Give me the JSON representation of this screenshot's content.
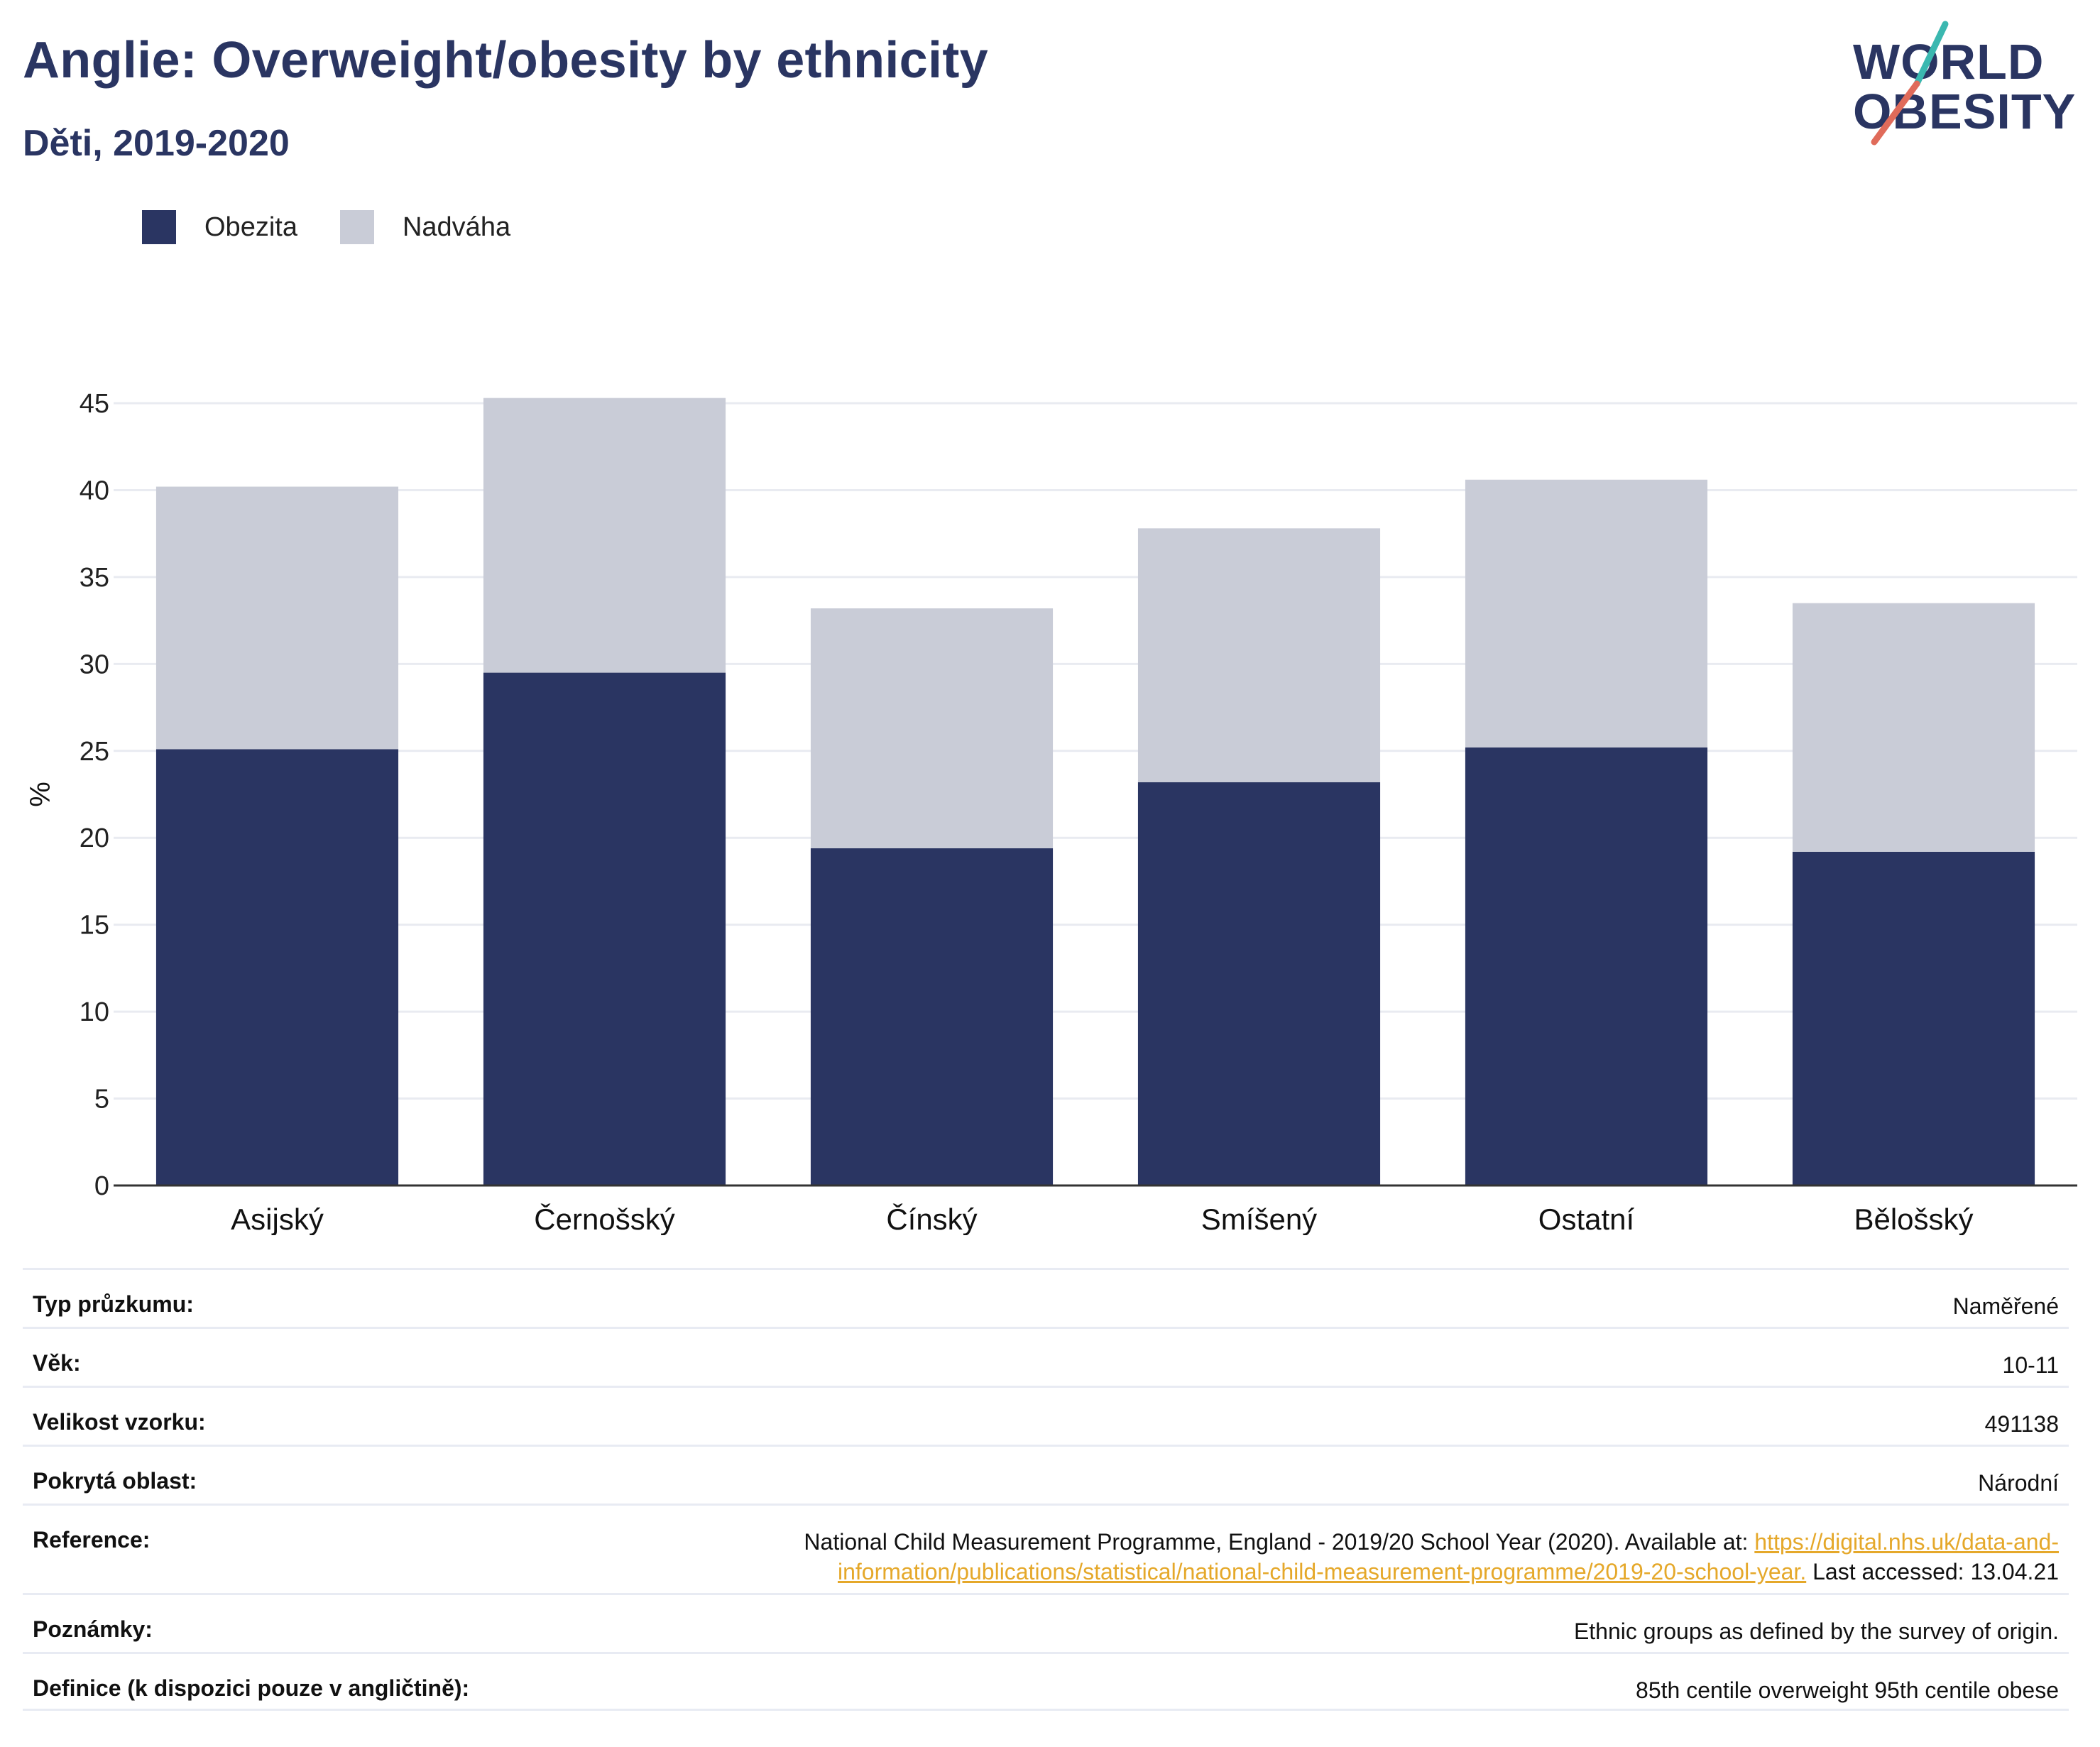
{
  "header": {
    "title": "Anglie: Overweight/obesity by ethnicity",
    "subtitle": "Děti, 2019-2020"
  },
  "logo": {
    "line1": "WORLD",
    "line2": "OBESITY",
    "colors": {
      "text": "#2a3562",
      "slash_top": "#3bb8b0",
      "slash_bottom": "#e06b5a"
    }
  },
  "legend": [
    {
      "label": "Obezita",
      "color": "#2a3562"
    },
    {
      "label": "Nadváha",
      "color": "#c9ccd7"
    }
  ],
  "chart_data": {
    "type": "bar",
    "stacked": true,
    "categories": [
      "Asijský",
      "Černošský",
      "Čínský",
      "Smíšený",
      "Ostatní",
      "Bělošský"
    ],
    "series": [
      {
        "name": "Obezita",
        "color": "#2a3562",
        "values": [
          25.1,
          29.5,
          19.4,
          23.2,
          25.2,
          19.2
        ]
      },
      {
        "name": "Nadváha",
        "color": "#c9ccd7",
        "values": [
          15.1,
          15.8,
          13.8,
          14.6,
          15.4,
          14.3
        ]
      }
    ],
    "totals": [
      40.2,
      45.3,
      33.2,
      37.8,
      40.6,
      33.5
    ],
    "ylabel": "%",
    "ylim": [
      0,
      45
    ],
    "yticks": [
      0,
      5,
      10,
      15,
      20,
      25,
      30,
      35,
      40,
      45
    ],
    "grid": true,
    "legend_position": "top-left"
  },
  "info": {
    "rows": [
      {
        "label": "Typ průzkumu:",
        "value": "Naměřené"
      },
      {
        "label": "Věk:",
        "value": "10-11"
      },
      {
        "label": "Velikost vzorku:",
        "value": "491138"
      },
      {
        "label": "Pokrytá oblast:",
        "value": "Národní"
      }
    ],
    "reference": {
      "label": "Reference:",
      "text_before": "National Child Measurement Programme, England - 2019/20 School Year (2020). Available at: ",
      "link": "https://digital.nhs.uk/data-and-information/publications/statistical/national-child-measurement-programme/2019-20-school-year.",
      "text_after": " Last accessed: 13.04.21"
    },
    "notes": {
      "label": "Poznámky:",
      "value": "Ethnic groups as defined by the survey of origin."
    },
    "definition": {
      "label": "Definice (k dispozici pouze v angličtině):",
      "value": "85th centile overweight 95th centile obese"
    }
  }
}
